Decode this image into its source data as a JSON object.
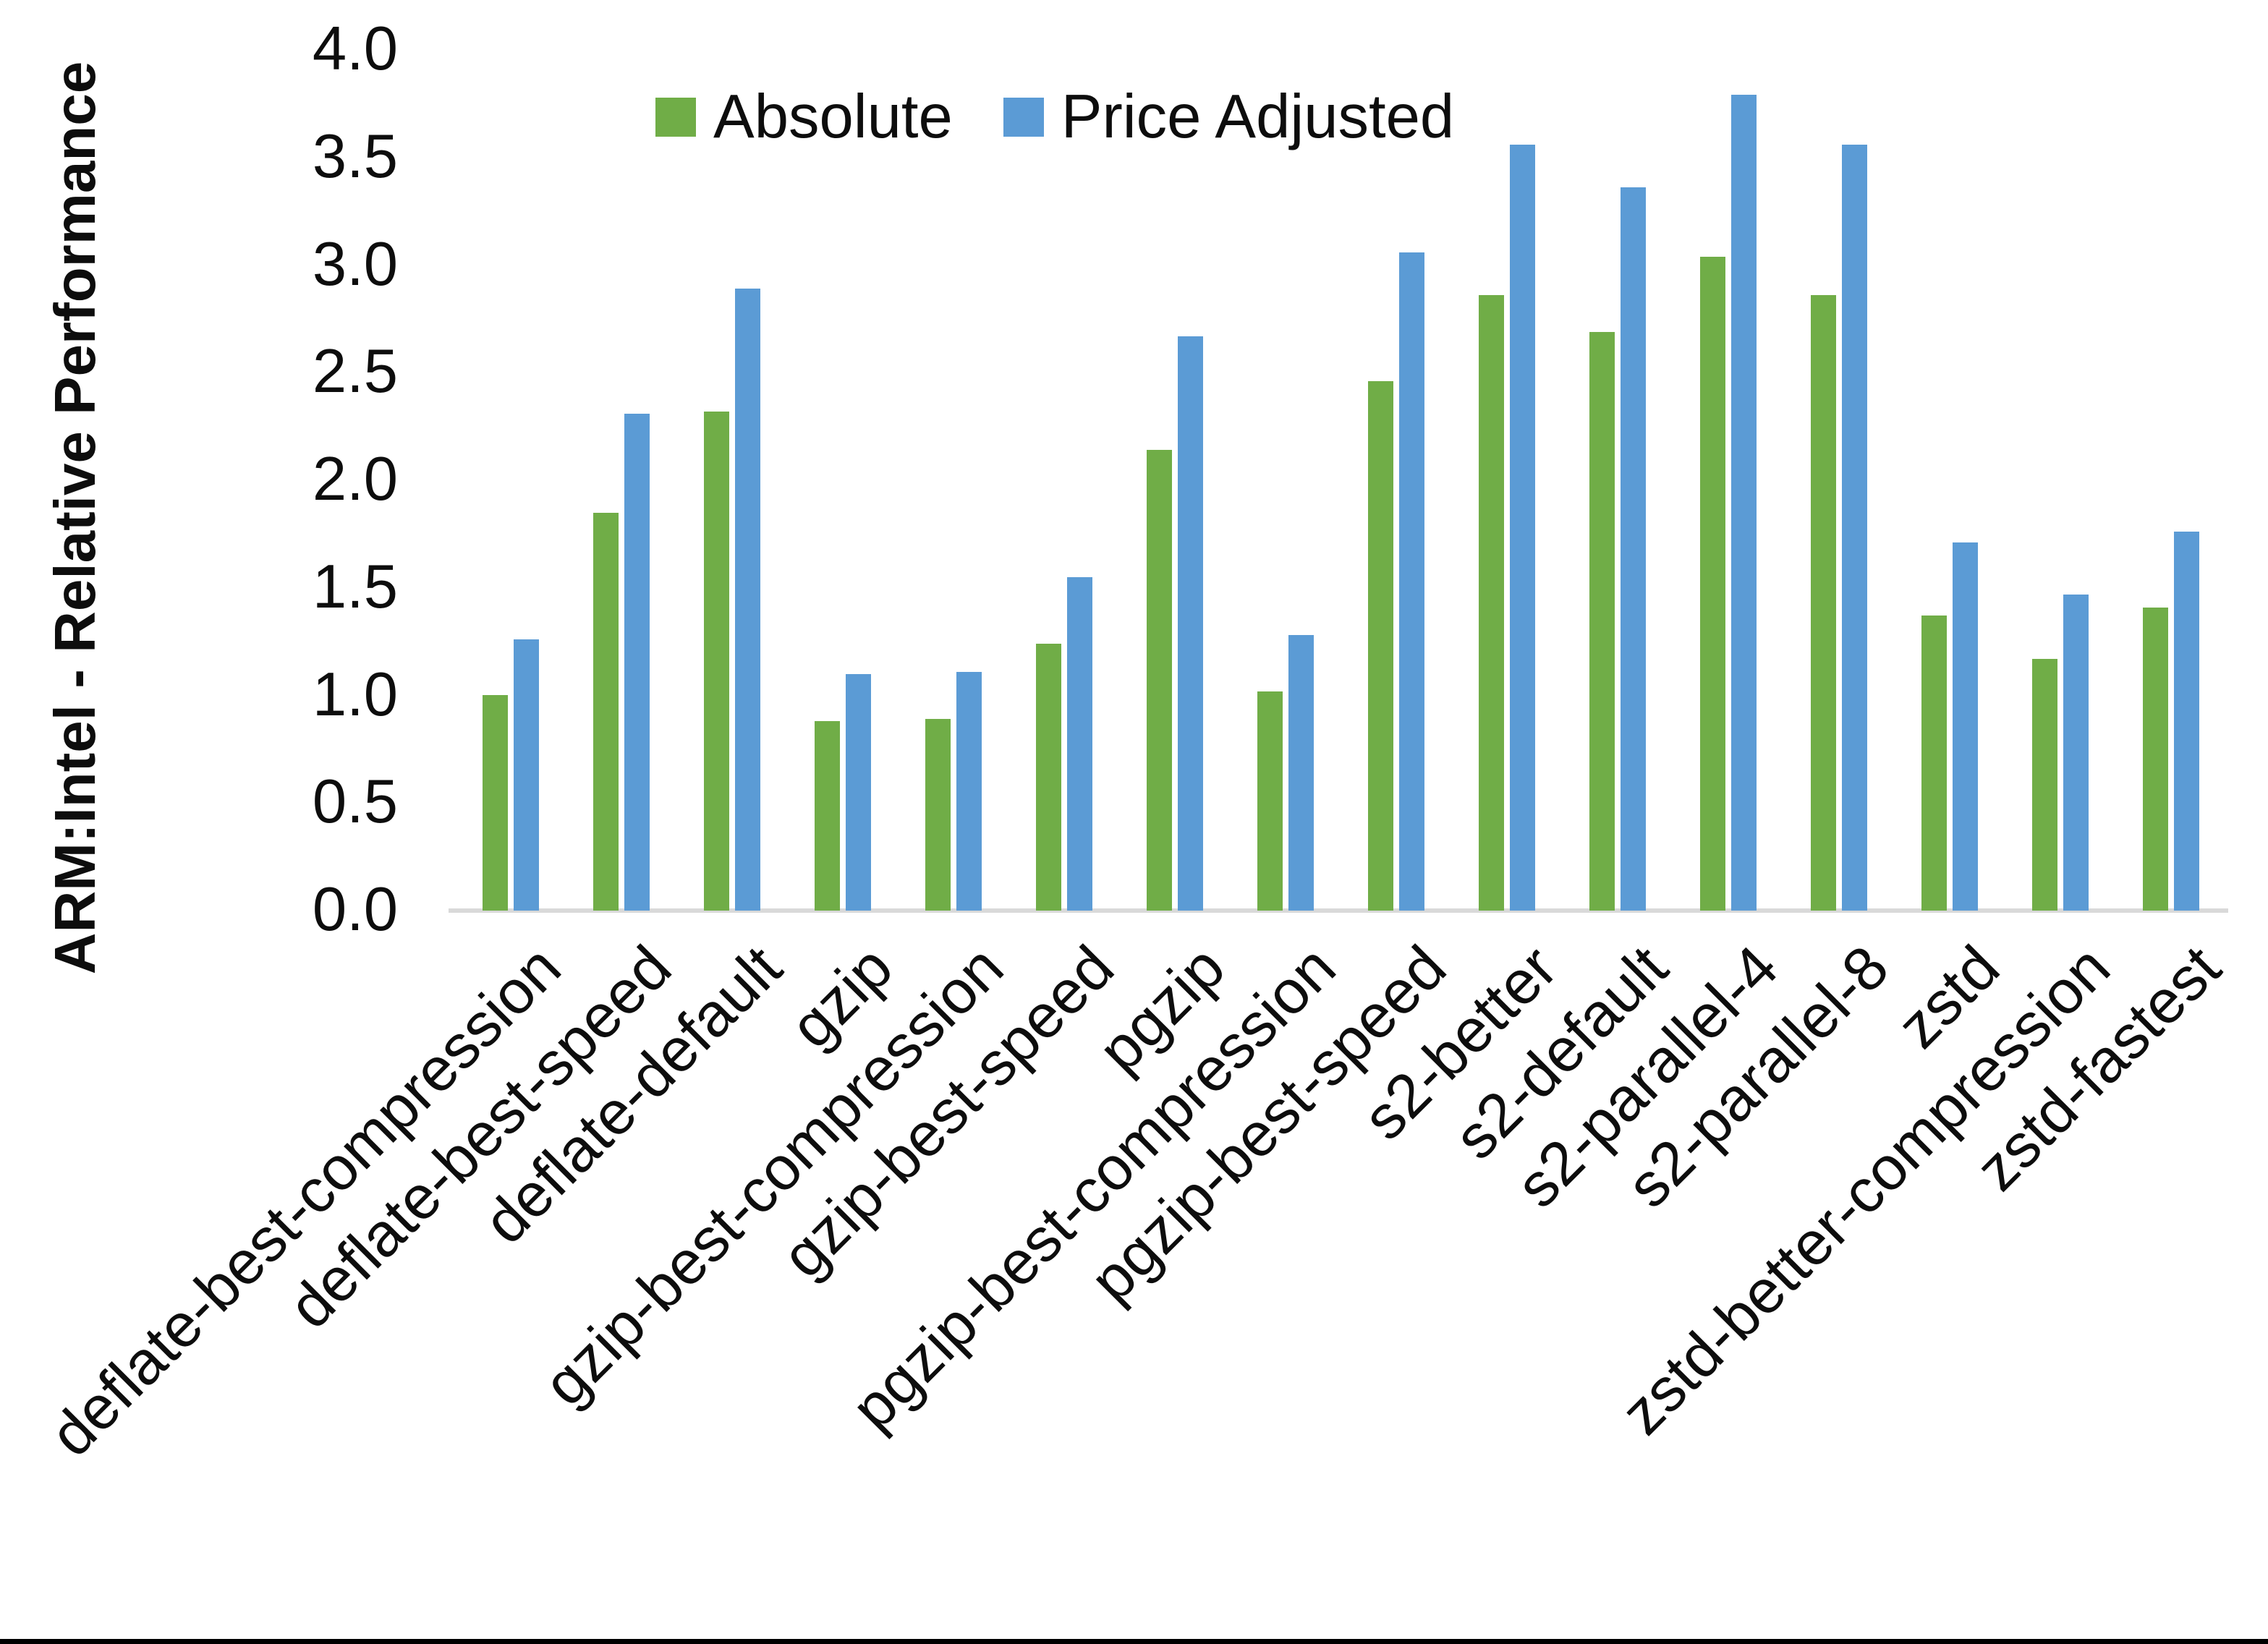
{
  "figure": {
    "background": "#ffffff",
    "bottom_border_color": "#000000",
    "axis_line_color": "#d9d9d9",
    "text_color": "#0d0d0d"
  },
  "chart_data": {
    "type": "bar",
    "title": "",
    "xlabel": "",
    "ylabel": "ARM:Intel - Relative Performance",
    "ylim": [
      0.0,
      4.0
    ],
    "ytick_step": 0.5,
    "yticks": [
      "0.0",
      "0.5",
      "1.0",
      "1.5",
      "2.0",
      "2.5",
      "3.0",
      "3.5",
      "4.0"
    ],
    "grid": false,
    "legend_position": "top-center",
    "categories": [
      "deflate-best-compression",
      "deflate-best-speed",
      "deflate-default",
      "gzip",
      "gzip-best-compression",
      "gzip-best-speed",
      "pgzip",
      "pgzip-best-compression",
      "pgzip-best-speed",
      "s2-better",
      "s2-default",
      "s2-parallel-4",
      "s2-parallel-8",
      "zstd",
      "zstd-better-compression",
      "zstd-fastest"
    ],
    "series": [
      {
        "name": "Absolute",
        "color": "#70AD47",
        "values": [
          1.0,
          1.85,
          2.32,
          0.88,
          0.89,
          1.24,
          2.14,
          1.02,
          2.46,
          2.86,
          2.69,
          3.04,
          2.86,
          1.37,
          1.17,
          1.41
        ]
      },
      {
        "name": "Price Adjusted",
        "color": "#5B9BD5",
        "values": [
          1.26,
          2.31,
          2.89,
          1.1,
          1.11,
          1.55,
          2.67,
          1.28,
          3.06,
          3.56,
          3.36,
          3.79,
          3.56,
          1.71,
          1.47,
          1.76
        ]
      }
    ]
  }
}
